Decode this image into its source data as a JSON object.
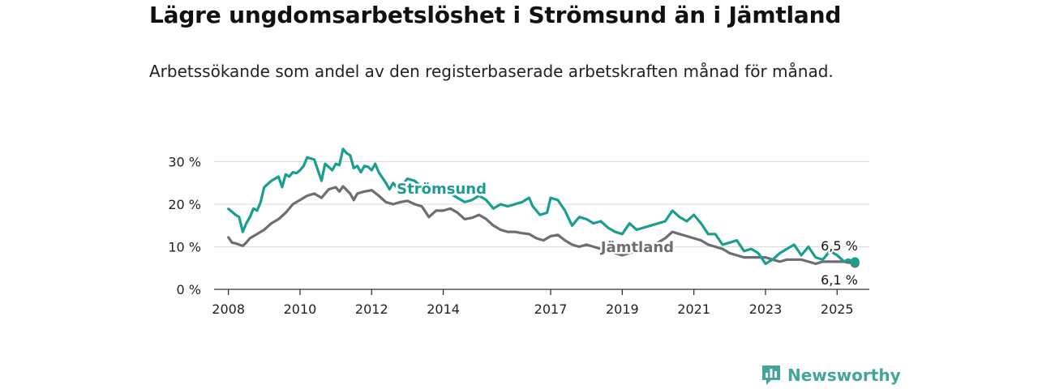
{
  "header": {
    "title": "Lägre ungdomsarbetslöshet i Strömsund än i Jämtland",
    "subtitle": "Arbetssökande som andel av den registerbaserade arbetskraften månad för månad."
  },
  "brand": {
    "name": "Newsworthy",
    "icon": "newsworthy-chart-icon",
    "color": "#44a69b"
  },
  "chart_data": {
    "type": "line",
    "xlim": [
      2007.6,
      2025.9
    ],
    "ylim": [
      0,
      32
    ],
    "yticks": [
      0,
      10,
      20,
      30
    ],
    "ytick_labels": [
      "0 %",
      "10 %",
      "20 %",
      "30 %"
    ],
    "xticks": [
      2008,
      2010,
      2012,
      2014,
      2017,
      2019,
      2021,
      2023,
      2025
    ],
    "xtick_labels": [
      "2008",
      "2010",
      "2012",
      "2014",
      "2017",
      "2019",
      "2021",
      "2023",
      "2025"
    ],
    "grid": true,
    "series": [
      {
        "name": "Strömsund",
        "color": "#1a9e8f",
        "end_label": "6,5 %",
        "x": [
          2008.0,
          2008.1,
          2008.2,
          2008.3,
          2008.4,
          2008.5,
          2008.6,
          2008.7,
          2008.8,
          2008.9,
          2009.0,
          2009.2,
          2009.3,
          2009.4,
          2009.5,
          2009.6,
          2009.7,
          2009.8,
          2009.9,
          2010.0,
          2010.1,
          2010.2,
          2010.4,
          2010.5,
          2010.6,
          2010.7,
          2010.9,
          2011.0,
          2011.1,
          2011.2,
          2011.3,
          2011.4,
          2011.5,
          2011.6,
          2011.7,
          2011.8,
          2011.9,
          2012.0,
          2012.1,
          2012.2,
          2012.4,
          2012.5,
          2012.6,
          2012.7,
          2012.8,
          2012.9,
          2013.0,
          2013.2,
          2013.4,
          2013.6,
          2013.8,
          2014.0,
          2014.2,
          2014.4,
          2014.6,
          2014.8,
          2015.0,
          2015.2,
          2015.4,
          2015.6,
          2015.8,
          2016.0,
          2016.2,
          2016.4,
          2016.5,
          2016.7,
          2016.9,
          2017.0,
          2017.2,
          2017.4,
          2017.6,
          2017.8,
          2018.0,
          2018.2,
          2018.4,
          2018.6,
          2018.8,
          2019.0,
          2019.2,
          2019.4,
          2019.6,
          2019.8,
          2020.0,
          2020.2,
          2020.4,
          2020.6,
          2020.8,
          2021.0,
          2021.2,
          2021.4,
          2021.6,
          2021.8,
          2022.0,
          2022.2,
          2022.4,
          2022.6,
          2022.8,
          2023.0,
          2023.2,
          2023.4,
          2023.6,
          2023.8,
          2024.0,
          2024.2,
          2024.4,
          2024.6,
          2024.8,
          2025.0,
          2025.2,
          2025.3,
          2025.5
        ],
        "y": [
          18.9,
          18.2,
          17.5,
          17.0,
          13.5,
          15.5,
          17.0,
          19.0,
          18.5,
          20.5,
          24.0,
          25.5,
          26.0,
          26.5,
          24.0,
          27.0,
          26.5,
          27.5,
          27.3,
          28.0,
          29.0,
          31.0,
          30.5,
          28.0,
          25.5,
          29.5,
          28.0,
          29.5,
          29.2,
          33.0,
          32.0,
          31.5,
          28.5,
          29.0,
          27.5,
          29.0,
          28.8,
          28.0,
          29.5,
          27.5,
          25.0,
          23.5,
          25.0,
          24.0,
          24.5,
          25.0,
          26.0,
          25.5,
          24.0,
          24.0,
          23.0,
          23.5,
          22.5,
          21.5,
          20.5,
          21.0,
          22.0,
          21.0,
          19.0,
          20.0,
          19.5,
          20.0,
          20.5,
          21.5,
          19.5,
          17.5,
          18.0,
          21.5,
          21.0,
          18.5,
          15.0,
          17.0,
          16.5,
          15.5,
          16.0,
          14.5,
          13.5,
          13.0,
          15.5,
          14.0,
          14.5,
          15.0,
          15.5,
          16.0,
          18.5,
          17.0,
          16.0,
          17.5,
          15.5,
          13.0,
          13.0,
          10.5,
          11.0,
          11.5,
          9.0,
          9.5,
          8.5,
          6.0,
          7.0,
          8.5,
          9.5,
          10.5,
          8.0,
          10.0,
          7.5,
          7.0,
          9.0,
          8.0,
          6.5,
          7.0,
          6.5
        ]
      },
      {
        "name": "Jämtland",
        "color": "#6e6d73",
        "end_label": "6,1 %",
        "x": [
          2008.0,
          2008.1,
          2008.2,
          2008.3,
          2008.4,
          2008.5,
          2008.6,
          2008.8,
          2009.0,
          2009.2,
          2009.4,
          2009.6,
          2009.8,
          2010.0,
          2010.2,
          2010.4,
          2010.5,
          2010.6,
          2010.8,
          2011.0,
          2011.1,
          2011.2,
          2011.4,
          2011.5,
          2011.6,
          2011.8,
          2012.0,
          2012.2,
          2012.4,
          2012.6,
          2012.8,
          2013.0,
          2013.2,
          2013.4,
          2013.6,
          2013.8,
          2014.0,
          2014.2,
          2014.4,
          2014.6,
          2014.8,
          2015.0,
          2015.2,
          2015.4,
          2015.6,
          2015.8,
          2016.0,
          2016.2,
          2016.4,
          2016.6,
          2016.8,
          2017.0,
          2017.2,
          2017.4,
          2017.6,
          2017.8,
          2018.0,
          2018.2,
          2018.4,
          2018.6,
          2018.8,
          2019.0,
          2019.2,
          2019.4,
          2019.6,
          2019.8,
          2020.0,
          2020.2,
          2020.4,
          2020.6,
          2020.8,
          2021.0,
          2021.2,
          2021.4,
          2021.6,
          2021.8,
          2022.0,
          2022.2,
          2022.4,
          2022.6,
          2022.8,
          2023.0,
          2023.2,
          2023.4,
          2023.6,
          2023.8,
          2024.0,
          2024.2,
          2024.4,
          2024.6,
          2024.8,
          2025.0,
          2025.2,
          2025.3,
          2025.5
        ],
        "y": [
          12.2,
          11.0,
          10.8,
          10.5,
          10.2,
          11.0,
          12.0,
          13.0,
          14.0,
          15.5,
          16.5,
          18.0,
          20.0,
          21.0,
          22.0,
          22.5,
          22.0,
          21.5,
          23.5,
          24.0,
          23.0,
          24.2,
          22.5,
          21.0,
          22.5,
          23.0,
          23.3,
          22.0,
          20.5,
          20.0,
          20.5,
          20.8,
          20.0,
          19.5,
          17.0,
          18.5,
          18.5,
          19.0,
          18.0,
          16.5,
          16.8,
          17.5,
          16.5,
          15.0,
          14.0,
          13.5,
          13.5,
          13.2,
          13.0,
          12.0,
          11.5,
          12.5,
          12.8,
          11.5,
          10.5,
          10.0,
          10.5,
          10.0,
          9.5,
          9.0,
          8.5,
          8.0,
          8.5,
          9.0,
          10.0,
          10.5,
          11.0,
          12.0,
          13.5,
          13.0,
          12.5,
          12.0,
          11.5,
          10.5,
          10.0,
          9.5,
          8.5,
          8.0,
          7.5,
          7.5,
          7.5,
          7.5,
          7.0,
          6.5,
          7.0,
          7.0,
          7.0,
          6.5,
          6.0,
          6.5,
          6.5,
          6.5,
          6.5,
          6.3,
          6.1
        ]
      }
    ]
  }
}
